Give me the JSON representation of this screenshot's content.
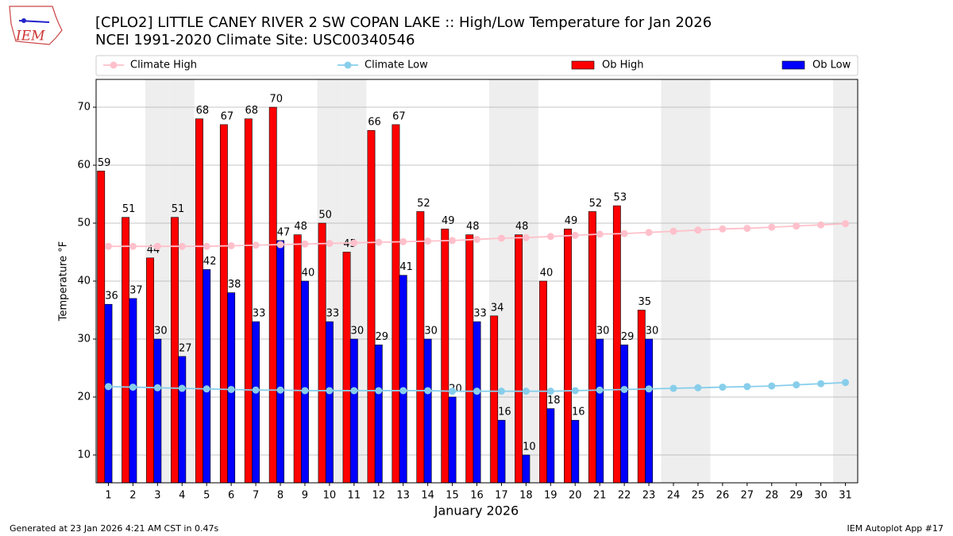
{
  "chart_data": {
    "type": "bar",
    "title": "[CPLO2] LITTLE CANEY RIVER 2 SW COPAN LAKE :: High/Low Temperature for Jan 2026",
    "subtitle": "NCEI 1991-2020 Climate Site: USC00340546",
    "xlabel": "January 2026",
    "ylabel": "Temperature °F",
    "footer_left": "Generated at 23 Jan 2026 4:21 AM CST in 0.47s",
    "footer_right": "IEM Autoplot App #17",
    "logo_text": "IEM",
    "categories": [
      "1",
      "2",
      "3",
      "4",
      "5",
      "6",
      "7",
      "8",
      "9",
      "10",
      "11",
      "12",
      "13",
      "14",
      "15",
      "16",
      "17",
      "18",
      "19",
      "20",
      "21",
      "22",
      "23",
      "24",
      "25",
      "26",
      "27",
      "28",
      "29",
      "30",
      "31"
    ],
    "shaded_categories": [
      2,
      3,
      9,
      10,
      16,
      17,
      23,
      24,
      30
    ],
    "shade_color": "#eeeeee",
    "series": [
      {
        "name": "Climate High",
        "kind": "line",
        "color": "#ffc0cb",
        "values": [
          46.0,
          46.0,
          46.0,
          46.0,
          46.0,
          46.1,
          46.2,
          46.3,
          46.4,
          46.5,
          46.6,
          46.7,
          46.8,
          46.9,
          47.0,
          47.2,
          47.4,
          47.5,
          47.7,
          47.9,
          48.1,
          48.2,
          48.4,
          48.6,
          48.8,
          49.0,
          49.1,
          49.3,
          49.5,
          49.7,
          49.9
        ]
      },
      {
        "name": "Climate Low",
        "kind": "line",
        "color": "#87ceeb",
        "values": [
          21.8,
          21.7,
          21.6,
          21.5,
          21.4,
          21.3,
          21.2,
          21.2,
          21.1,
          21.1,
          21.1,
          21.1,
          21.1,
          21.1,
          21.0,
          21.0,
          21.0,
          21.0,
          21.0,
          21.1,
          21.2,
          21.3,
          21.4,
          21.5,
          21.6,
          21.7,
          21.8,
          21.9,
          22.1,
          22.3,
          22.5
        ]
      },
      {
        "name": "Ob High",
        "kind": "bar",
        "color": "#ff0000",
        "values": [
          59,
          51,
          44,
          51,
          68,
          67,
          68,
          70,
          48,
          50,
          45,
          66,
          67,
          52,
          49,
          48,
          34,
          48,
          40,
          49,
          52,
          53,
          35,
          null,
          null,
          null,
          null,
          null,
          null,
          null,
          null
        ]
      },
      {
        "name": "Ob Low",
        "kind": "bar",
        "color": "#0000ff",
        "values": [
          36,
          37,
          30,
          27,
          42,
          38,
          33,
          47,
          40,
          33,
          30,
          29,
          41,
          30,
          20,
          33,
          16,
          10,
          18,
          16,
          30,
          29,
          30,
          null,
          null,
          null,
          null,
          null,
          null,
          null,
          null
        ]
      }
    ],
    "xlim": [
      0.5,
      31.5
    ],
    "ylim": [
      5.2,
      74.8
    ],
    "yticks": [
      10,
      20,
      30,
      40,
      50,
      60,
      70
    ],
    "grid": true
  }
}
